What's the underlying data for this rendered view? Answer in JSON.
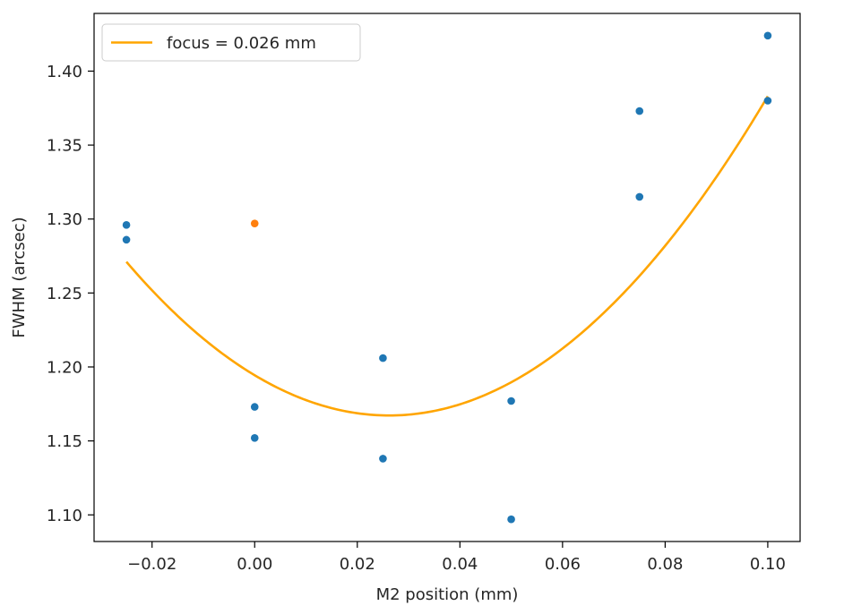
{
  "chart_data": {
    "type": "scatter",
    "title": "",
    "xlabel": "M2 position (mm)",
    "ylabel": "FWHM (arcsec)",
    "xlim": [
      -0.0313,
      0.1063
    ],
    "ylim": [
      1.082,
      1.439
    ],
    "xticks": [
      -0.02,
      0.0,
      0.02,
      0.04,
      0.06,
      0.08,
      0.1
    ],
    "xtick_labels": [
      "−0.02",
      "0.00",
      "0.02",
      "0.04",
      "0.06",
      "0.08",
      "0.10"
    ],
    "yticks": [
      1.1,
      1.15,
      1.2,
      1.25,
      1.3,
      1.35,
      1.4
    ],
    "ytick_labels": [
      "1.10",
      "1.15",
      "1.20",
      "1.25",
      "1.30",
      "1.35",
      "1.40"
    ],
    "grid": false,
    "legend_position": "top-left",
    "series": [
      {
        "kind": "scatter",
        "color": "#1f77b4",
        "points": [
          [
            -0.025,
            1.296
          ],
          [
            -0.025,
            1.286
          ],
          [
            0.0,
            1.173
          ],
          [
            0.0,
            1.152
          ],
          [
            0.025,
            1.206
          ],
          [
            0.025,
            1.138
          ],
          [
            0.05,
            1.177
          ],
          [
            0.05,
            1.097
          ],
          [
            0.075,
            1.373
          ],
          [
            0.075,
            1.315
          ],
          [
            0.1,
            1.424
          ],
          [
            0.1,
            1.38
          ]
        ]
      },
      {
        "kind": "scatter",
        "color": "#ff7f0e",
        "points": [
          [
            0.0,
            1.297
          ]
        ]
      },
      {
        "kind": "line",
        "name": "focus = 0.026 mm",
        "color": "#ffa500",
        "fit": {
          "a": 39.63,
          "x0": 0.0262,
          "y0": 1.1672
        },
        "x_range": [
          -0.025,
          0.1
        ]
      }
    ]
  }
}
